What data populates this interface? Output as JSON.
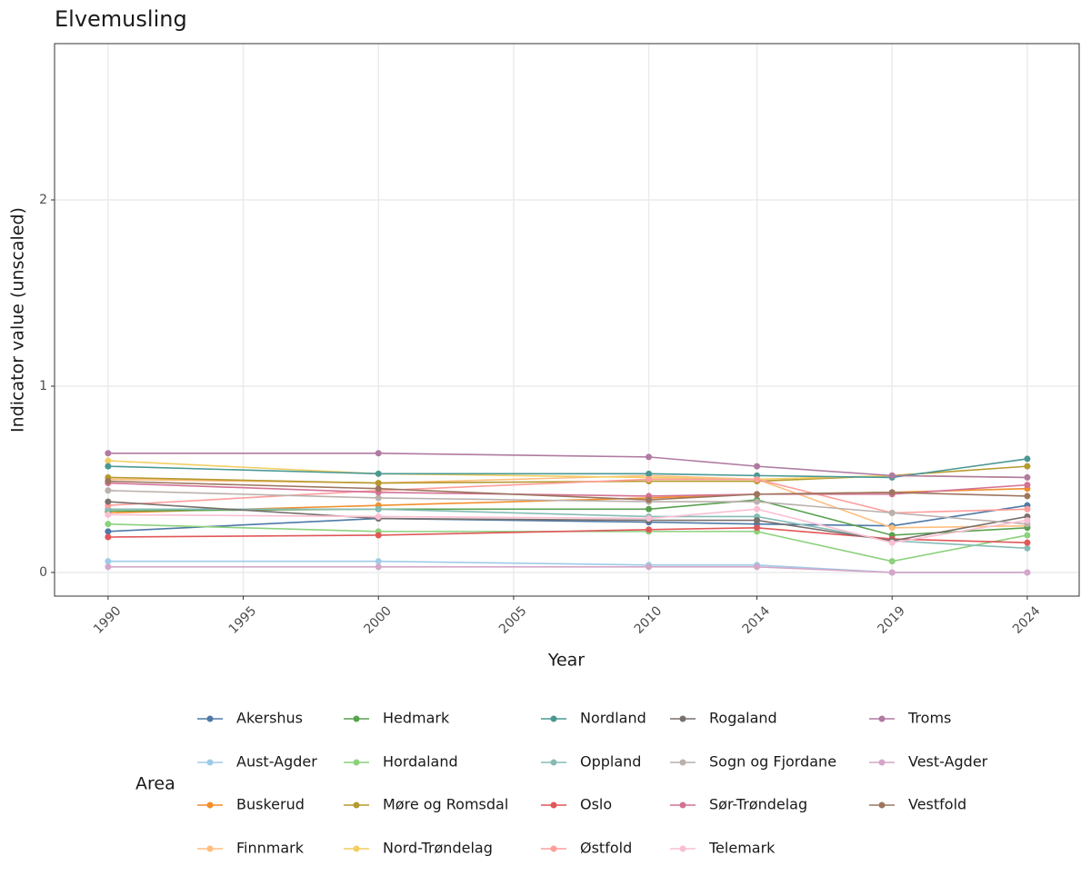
{
  "chart_data": {
    "type": "line",
    "title": "Elvemusling",
    "x_label": "Year",
    "y_label": "Indicator value (unscaled)",
    "x": [
      1990,
      2000,
      2010,
      2014,
      2019,
      2024
    ],
    "xlim": [
      1988.02,
      2025.92
    ],
    "xticks": [
      1990,
      1995,
      2000,
      2005,
      2010,
      2014,
      2019,
      2024
    ],
    "ylim": [
      -0.127,
      2.839
    ],
    "yticks": [
      0,
      1,
      2
    ],
    "grid": true,
    "legend_title": "Area",
    "legend_position": "bottom",
    "series": [
      {
        "name": "Akershus",
        "color": "#4e79a7",
        "values": [
          0.22,
          0.29,
          0.27,
          0.26,
          0.25,
          0.36
        ]
      },
      {
        "name": "Aust-Agder",
        "color": "#a0cbe8",
        "values": [
          0.06,
          0.06,
          0.04,
          0.04,
          0.0,
          0.0
        ]
      },
      {
        "name": "Buskerud",
        "color": "#f28e2b",
        "values": [
          0.32,
          0.36,
          0.4,
          0.42,
          0.43,
          0.45
        ]
      },
      {
        "name": "Finnmark",
        "color": "#ffbe7d",
        "values": [
          0.5,
          0.48,
          0.52,
          0.5,
          0.24,
          0.25
        ]
      },
      {
        "name": "Hedmark",
        "color": "#59a14f",
        "values": [
          0.33,
          0.34,
          0.34,
          0.39,
          0.2,
          0.24
        ]
      },
      {
        "name": "Hordaland",
        "color": "#8cd17d",
        "values": [
          0.26,
          0.22,
          0.22,
          0.22,
          0.06,
          0.2
        ]
      },
      {
        "name": "Møre og Romsdal",
        "color": "#b6992d",
        "values": [
          0.51,
          0.48,
          0.49,
          0.49,
          0.52,
          0.57
        ]
      },
      {
        "name": "Nord-Trøndelag",
        "color": "#f1ce63",
        "values": [
          0.6,
          0.53,
          0.51,
          0.5,
          0.52,
          0.51
        ]
      },
      {
        "name": "Nordland",
        "color": "#499894",
        "values": [
          0.57,
          0.53,
          0.53,
          0.52,
          0.51,
          0.61
        ]
      },
      {
        "name": "Oppland",
        "color": "#86bcb6",
        "values": [
          0.34,
          0.34,
          0.3,
          0.3,
          0.17,
          0.13
        ]
      },
      {
        "name": "Oslo",
        "color": "#e15759",
        "values": [
          0.19,
          0.2,
          0.23,
          0.24,
          0.18,
          0.16
        ]
      },
      {
        "name": "Østfold",
        "color": "#ff9d9a",
        "values": [
          0.36,
          0.44,
          0.5,
          0.5,
          0.32,
          0.34
        ]
      },
      {
        "name": "Rogaland",
        "color": "#79706e",
        "values": [
          0.38,
          0.29,
          0.28,
          0.28,
          0.17,
          0.3
        ]
      },
      {
        "name": "Sogn og Fjordane",
        "color": "#bab0ac",
        "values": [
          0.44,
          0.4,
          0.38,
          0.38,
          0.32,
          0.26
        ]
      },
      {
        "name": "Sør-Trøndelag",
        "color": "#d37295",
        "values": [
          0.48,
          0.43,
          0.41,
          0.42,
          0.42,
          0.47
        ]
      },
      {
        "name": "Telemark",
        "color": "#fabfd2",
        "values": [
          0.31,
          0.3,
          0.29,
          0.34,
          0.16,
          0.28
        ]
      },
      {
        "name": "Troms",
        "color": "#b07aa1",
        "values": [
          0.64,
          0.64,
          0.62,
          0.57,
          0.52,
          0.51
        ]
      },
      {
        "name": "Vest-Agder",
        "color": "#d4a6c8",
        "values": [
          0.03,
          0.03,
          0.03,
          0.03,
          0.0,
          0.0
        ]
      },
      {
        "name": "Vestfold",
        "color": "#9d7660",
        "values": [
          0.49,
          0.45,
          0.39,
          0.42,
          0.43,
          0.41
        ]
      }
    ]
  }
}
